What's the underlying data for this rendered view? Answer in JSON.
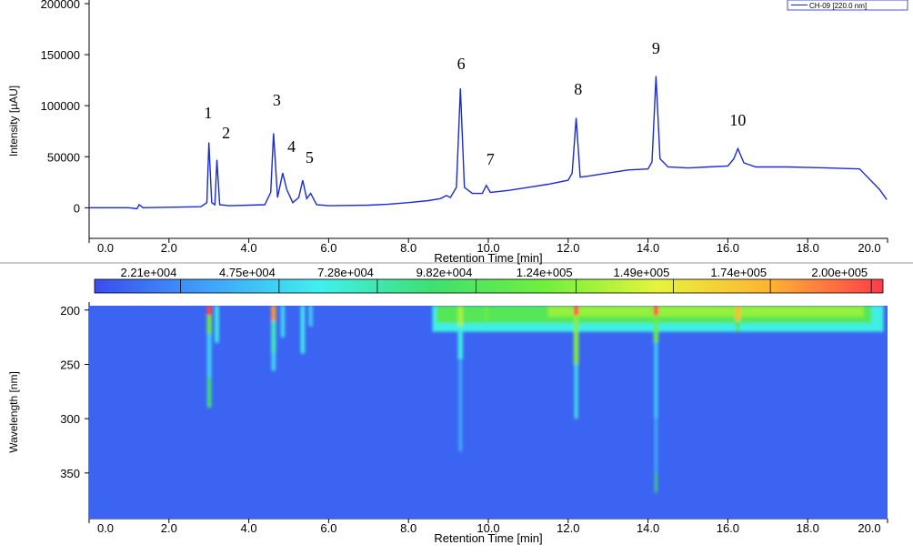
{
  "chart_data": [
    {
      "type": "line",
      "xlabel": "Retention Time [min]",
      "ylabel": "Intensity [µAU]",
      "xlim": [
        0,
        20
      ],
      "ylim": [
        -30000,
        200000
      ],
      "xticks": [
        {
          "value": 0,
          "label": "0.0"
        },
        {
          "value": 2,
          "label": "2.0"
        },
        {
          "value": 4,
          "label": "4.0"
        },
        {
          "value": 6,
          "label": "6.0"
        },
        {
          "value": 8,
          "label": "8.0"
        },
        {
          "value": 10,
          "label": "10.0"
        },
        {
          "value": 12,
          "label": "12.0"
        },
        {
          "value": 14,
          "label": "14.0"
        },
        {
          "value": 16,
          "label": "16.0"
        },
        {
          "value": 18,
          "label": "18.0"
        },
        {
          "value": 20,
          "label": "20.0"
        }
      ],
      "yticks": [
        0,
        50000,
        100000,
        150000,
        200000
      ],
      "x": [
        0,
        1.0,
        1.2,
        1.25,
        1.35,
        2.0,
        2.8,
        2.95,
        3.0,
        3.07,
        3.15,
        3.2,
        3.27,
        3.5,
        4.4,
        4.55,
        4.62,
        4.72,
        4.85,
        4.95,
        5.1,
        5.25,
        5.35,
        5.45,
        5.55,
        5.7,
        6.0,
        7.0,
        7.5,
        8.0,
        8.5,
        8.8,
        8.95,
        9.05,
        9.2,
        9.3,
        9.4,
        9.6,
        9.85,
        9.95,
        10.05,
        10.5,
        11.0,
        11.5,
        12.0,
        12.1,
        12.2,
        12.3,
        12.5,
        13.0,
        13.5,
        14.0,
        14.1,
        14.2,
        14.3,
        14.5,
        15.0,
        15.5,
        16.0,
        16.15,
        16.25,
        16.4,
        16.7,
        17.5,
        18.5,
        19.3,
        19.5,
        19.8,
        19.98
      ],
      "series": [
        {
          "name": "CH-09 [220.0 nm]",
          "color": "#1a2bd6",
          "values": [
            0,
            0,
            -1000,
            3000,
            0,
            500,
            1000,
            5000,
            64000,
            5000,
            3000,
            47000,
            3000,
            2000,
            3000,
            15000,
            73000,
            10000,
            34000,
            18000,
            5000,
            10000,
            27000,
            9000,
            14000,
            3000,
            2000,
            2500,
            3500,
            5000,
            7000,
            9000,
            12000,
            10000,
            20000,
            117000,
            20000,
            14000,
            14000,
            22000,
            15000,
            17000,
            20000,
            23000,
            27000,
            34000,
            88000,
            30000,
            31000,
            34000,
            37000,
            38000,
            45000,
            129000,
            48000,
            40000,
            39000,
            40000,
            41000,
            48000,
            58000,
            44000,
            40000,
            40000,
            39000,
            38000,
            30000,
            18000,
            8000
          ]
        }
      ],
      "annotations": [
        {
          "text": "1",
          "x": 2.98,
          "y": 87700
        },
        {
          "text": "2",
          "x": 3.43,
          "y": 68000
        },
        {
          "text": "3",
          "x": 4.7,
          "y": 100000
        },
        {
          "text": "4",
          "x": 5.07,
          "y": 54700
        },
        {
          "text": "5",
          "x": 5.52,
          "y": 44000
        },
        {
          "text": "6",
          "x": 9.32,
          "y": 135800
        },
        {
          "text": "7",
          "x": 10.05,
          "y": 42000
        },
        {
          "text": "8",
          "x": 12.25,
          "y": 110800
        },
        {
          "text": "9",
          "x": 14.2,
          "y": 151000
        },
        {
          "text": "10",
          "x": 16.25,
          "y": 80500
        }
      ]
    },
    {
      "type": "heatmap",
      "xlabel": "Retention Time [min]",
      "ylabel": "Wavelength [nm]",
      "xlim": [
        0,
        20
      ],
      "ylim": [
        392,
        196
      ],
      "xticks": [
        {
          "value": 0,
          "label": "0.0"
        },
        {
          "value": 2,
          "label": "2.0"
        },
        {
          "value": 4,
          "label": "4.0"
        },
        {
          "value": 6,
          "label": "6.0"
        },
        {
          "value": 8,
          "label": "8.0"
        },
        {
          "value": 10,
          "label": "10.0"
        },
        {
          "value": 12,
          "label": "12.0"
        },
        {
          "value": 14,
          "label": "14.0"
        },
        {
          "value": 16,
          "label": "16.0"
        },
        {
          "value": 18,
          "label": "18.0"
        },
        {
          "value": 20,
          "label": "20.0"
        }
      ],
      "yticks": [
        200,
        250,
        300,
        350
      ],
      "clim": [
        0,
        203000
      ],
      "colormap": [
        "#3a4cf0",
        "#3fa2fb",
        "#3ff0ee",
        "#3fe070",
        "#70f03c",
        "#e6f43a",
        "#ffb232",
        "#ff3b4a"
      ],
      "cticks": [
        {
          "value": 22100,
          "label": "2.21e+004"
        },
        {
          "value": 47500,
          "label": "4.75e+004"
        },
        {
          "value": 72800,
          "label": "7.28e+004"
        },
        {
          "value": 98200,
          "label": "9.82e+004"
        },
        {
          "value": 124000,
          "label": "1.24e+005"
        },
        {
          "value": 149000,
          "label": "1.49e+005"
        },
        {
          "value": 174000,
          "label": "1.74e+005"
        },
        {
          "value": 200000,
          "label": "2.00e+005"
        }
      ],
      "background": 8000,
      "spots": [
        {
          "t": [
            8.6,
            19.9
          ],
          "wl": [
            196,
            220
          ],
          "value": 60000
        },
        {
          "t": [
            8.7,
            19.6
          ],
          "wl": [
            196,
            212
          ],
          "value": 100000
        },
        {
          "t": [
            11.5,
            19.4
          ],
          "wl": [
            196,
            206
          ],
          "value": 125000
        },
        {
          "t": [
            2.95,
            3.07
          ],
          "wl": [
            196,
            205
          ],
          "value": 200000
        },
        {
          "t": [
            2.95,
            3.07
          ],
          "wl": [
            205,
            222
          ],
          "value": 110000
        },
        {
          "t": [
            2.96,
            3.06
          ],
          "wl": [
            222,
            262
          ],
          "value": 50000
        },
        {
          "t": [
            2.96,
            3.06
          ],
          "wl": [
            262,
            290
          ],
          "value": 85000
        },
        {
          "t": [
            3.15,
            3.25
          ],
          "wl": [
            196,
            230
          ],
          "value": 60000
        },
        {
          "t": [
            4.56,
            4.68
          ],
          "wl": [
            196,
            210
          ],
          "value": 180000
        },
        {
          "t": [
            4.56,
            4.68
          ],
          "wl": [
            210,
            240
          ],
          "value": 70000
        },
        {
          "t": [
            4.57,
            4.67
          ],
          "wl": [
            240,
            256
          ],
          "value": 50000
        },
        {
          "t": [
            4.8,
            4.9
          ],
          "wl": [
            196,
            225
          ],
          "value": 50000
        },
        {
          "t": [
            5.3,
            5.4
          ],
          "wl": [
            196,
            240
          ],
          "value": 60000
        },
        {
          "t": [
            5.5,
            5.6
          ],
          "wl": [
            196,
            215
          ],
          "value": 45000
        },
        {
          "t": [
            9.24,
            9.36
          ],
          "wl": [
            196,
            215
          ],
          "value": 130000
        },
        {
          "t": [
            9.24,
            9.36
          ],
          "wl": [
            215,
            245
          ],
          "value": 60000
        },
        {
          "t": [
            9.26,
            9.34
          ],
          "wl": [
            245,
            330
          ],
          "value": 35000
        },
        {
          "t": [
            9.9,
            10.0
          ],
          "wl": [
            196,
            210
          ],
          "value": 110000
        },
        {
          "t": [
            12.14,
            12.26
          ],
          "wl": [
            196,
            205
          ],
          "value": 200000
        },
        {
          "t": [
            12.14,
            12.26
          ],
          "wl": [
            205,
            250
          ],
          "value": 120000
        },
        {
          "t": [
            12.16,
            12.24
          ],
          "wl": [
            250,
            300
          ],
          "value": 60000
        },
        {
          "t": [
            14.14,
            14.26
          ],
          "wl": [
            196,
            205
          ],
          "value": 200000
        },
        {
          "t": [
            14.14,
            14.26
          ],
          "wl": [
            205,
            230
          ],
          "value": 110000
        },
        {
          "t": [
            14.16,
            14.24
          ],
          "wl": [
            230,
            300
          ],
          "value": 50000
        },
        {
          "t": [
            14.17,
            14.23
          ],
          "wl": [
            300,
            350
          ],
          "value": 40000
        },
        {
          "t": [
            14.17,
            14.23
          ],
          "wl": [
            350,
            368
          ],
          "value": 90000
        },
        {
          "t": [
            16.19,
            16.31
          ],
          "wl": [
            196,
            210
          ],
          "value": 170000
        },
        {
          "t": [
            16.2,
            16.3
          ],
          "wl": [
            210,
            220
          ],
          "value": 100000
        }
      ]
    }
  ]
}
